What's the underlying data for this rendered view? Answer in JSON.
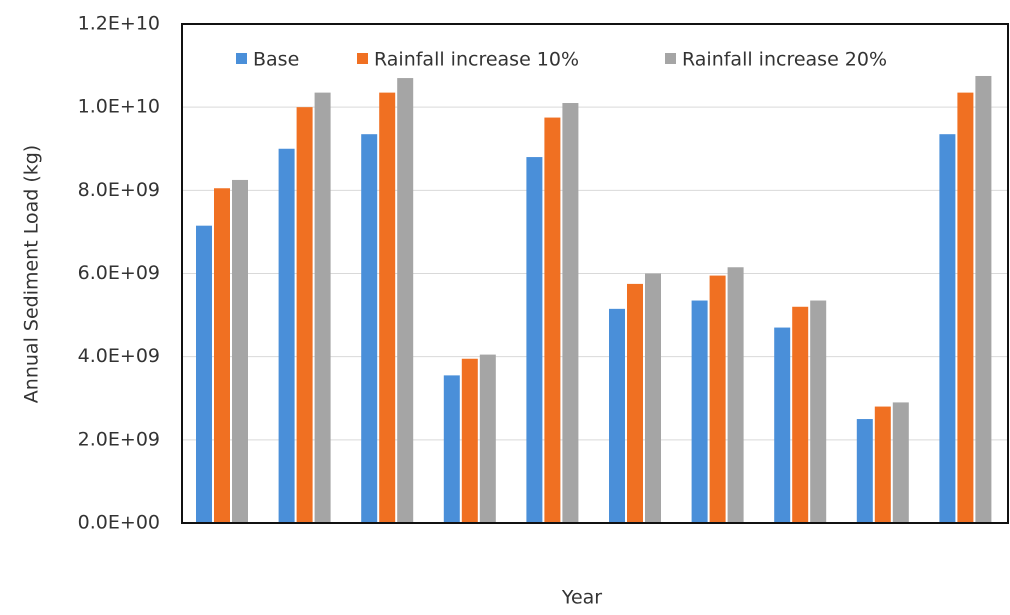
{
  "chart_data": {
    "type": "bar",
    "x_label": "Year",
    "y_label": "Annual  Sediment Load (kg)",
    "categories": [
      null,
      null,
      null,
      null,
      null,
      null,
      null,
      null,
      null,
      null
    ],
    "series": [
      {
        "name": "Base",
        "color": "#4a8fd9",
        "values": [
          7150000000,
          9000000000,
          9350000000,
          3550000000,
          8800000000,
          5150000000,
          5350000000,
          4700000000,
          2500000000,
          9350000000
        ]
      },
      {
        "name": "Rainfall increase  10%",
        "color": "#f07022",
        "values": [
          8050000000,
          10000000000,
          10350000000,
          3950000000,
          9750000000,
          5750000000,
          5950000000,
          5200000000,
          2800000000,
          10350000000
        ]
      },
      {
        "name": "Rainfall increase  20%",
        "color": "#a5a5a5",
        "values": [
          8250000000,
          10350000000,
          10700000000,
          4050000000,
          10100000000,
          6000000000,
          6150000000,
          5350000000,
          2900000000,
          10750000000
        ]
      }
    ],
    "ylim": [
      0,
      12000000000
    ],
    "yticks": [
      {
        "value": 0,
        "label": "0.0E+00"
      },
      {
        "value": 2000000000,
        "label": "2.0E+09"
      },
      {
        "value": 4000000000,
        "label": "4.0E+09"
      },
      {
        "value": 6000000000,
        "label": "6.0E+09"
      },
      {
        "value": 8000000000,
        "label": "8.0E+09"
      },
      {
        "value": 10000000000,
        "label": "1.0E+10"
      },
      {
        "value": 12000000000,
        "label": "1.2E+10"
      }
    ],
    "grid": true,
    "legend": "top"
  }
}
